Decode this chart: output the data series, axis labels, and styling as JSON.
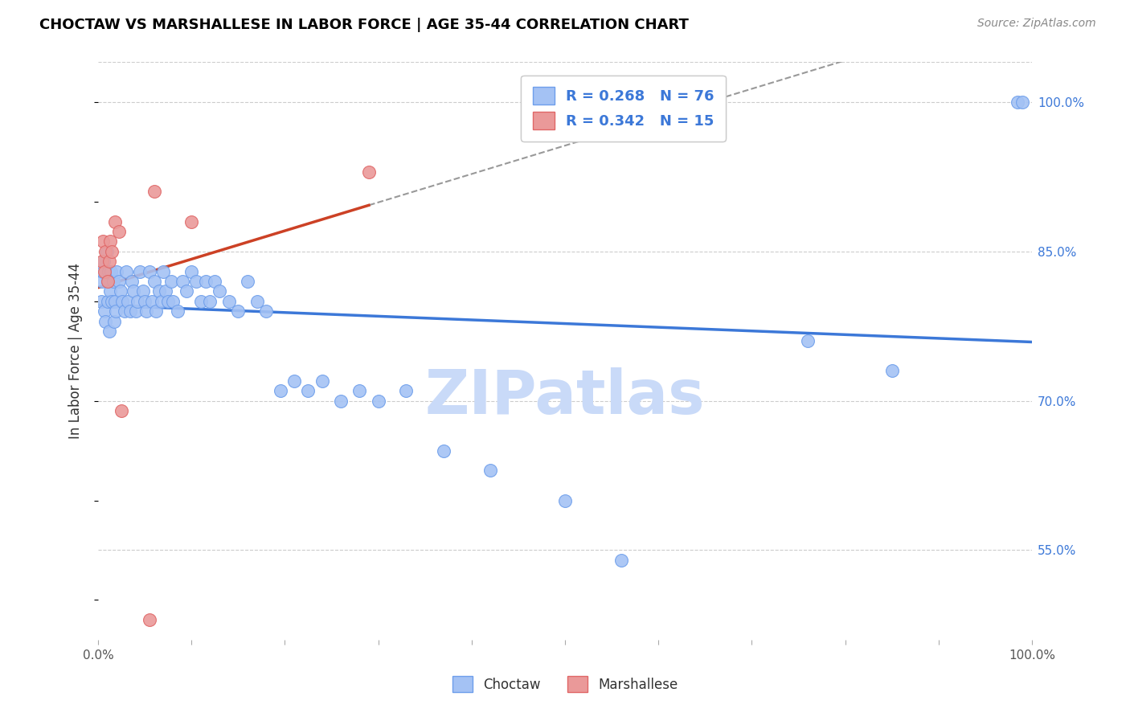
{
  "title": "CHOCTAW VS MARSHALLESE IN LABOR FORCE | AGE 35-44 CORRELATION CHART",
  "source": "Source: ZipAtlas.com",
  "ylabel": "In Labor Force | Age 35-44",
  "xlim": [
    0,
    1
  ],
  "ylim": [
    0.46,
    1.04
  ],
  "x_ticks": [
    0.0,
    0.1,
    0.2,
    0.3,
    0.4,
    0.5,
    0.6,
    0.7,
    0.8,
    0.9,
    1.0
  ],
  "x_tick_labels": [
    "0.0%",
    "",
    "",
    "",
    "",
    "",
    "",
    "",
    "",
    "",
    "100.0%"
  ],
  "y_ticks_right": [
    0.55,
    0.7,
    0.85,
    1.0
  ],
  "y_tick_labels_right": [
    "55.0%",
    "70.0%",
    "85.0%",
    "100.0%"
  ],
  "choctaw_R": 0.268,
  "choctaw_N": 76,
  "marshallese_R": 0.342,
  "marshallese_N": 15,
  "blue_fill": "#a4c2f4",
  "blue_edge": "#6d9eeb",
  "blue_line": "#3c78d8",
  "pink_fill": "#ea9999",
  "pink_edge": "#e06666",
  "pink_line": "#cc4125",
  "gray_dash_color": "#999999",
  "watermark_color": "#c9daf8",
  "legend_text_color": "#3c78d8",
  "choctaw_x": [
    0.003,
    0.004,
    0.005,
    0.006,
    0.007,
    0.008,
    0.009,
    0.01,
    0.01,
    0.011,
    0.012,
    0.013,
    0.014,
    0.015,
    0.016,
    0.017,
    0.018,
    0.019,
    0.02,
    0.022,
    0.024,
    0.026,
    0.028,
    0.03,
    0.032,
    0.034,
    0.036,
    0.038,
    0.04,
    0.042,
    0.045,
    0.048,
    0.05,
    0.052,
    0.055,
    0.058,
    0.06,
    0.062,
    0.065,
    0.068,
    0.07,
    0.072,
    0.075,
    0.078,
    0.08,
    0.085,
    0.09,
    0.095,
    0.1,
    0.105,
    0.11,
    0.115,
    0.12,
    0.125,
    0.13,
    0.14,
    0.15,
    0.16,
    0.17,
    0.18,
    0.195,
    0.21,
    0.225,
    0.24,
    0.26,
    0.28,
    0.3,
    0.33,
    0.37,
    0.42,
    0.5,
    0.56,
    0.76,
    0.85,
    0.985,
    0.99
  ],
  "choctaw_y": [
    0.8,
    0.82,
    0.83,
    0.84,
    0.79,
    0.78,
    0.85,
    0.8,
    0.82,
    0.83,
    0.77,
    0.81,
    0.83,
    0.8,
    0.82,
    0.78,
    0.8,
    0.79,
    0.83,
    0.82,
    0.81,
    0.8,
    0.79,
    0.83,
    0.8,
    0.79,
    0.82,
    0.81,
    0.79,
    0.8,
    0.83,
    0.81,
    0.8,
    0.79,
    0.83,
    0.8,
    0.82,
    0.79,
    0.81,
    0.8,
    0.83,
    0.81,
    0.8,
    0.82,
    0.8,
    0.79,
    0.82,
    0.81,
    0.83,
    0.82,
    0.8,
    0.82,
    0.8,
    0.82,
    0.81,
    0.8,
    0.79,
    0.82,
    0.8,
    0.79,
    0.71,
    0.72,
    0.71,
    0.72,
    0.7,
    0.71,
    0.7,
    0.71,
    0.65,
    0.63,
    0.6,
    0.54,
    0.76,
    0.73,
    1.0,
    1.0
  ],
  "marshallese_x": [
    0.004,
    0.005,
    0.007,
    0.008,
    0.01,
    0.012,
    0.013,
    0.015,
    0.018,
    0.022,
    0.025,
    0.06,
    0.1,
    0.29,
    0.055
  ],
  "marshallese_y": [
    0.84,
    0.86,
    0.83,
    0.85,
    0.82,
    0.84,
    0.86,
    0.85,
    0.88,
    0.87,
    0.69,
    0.91,
    0.88,
    0.93,
    0.48
  ]
}
